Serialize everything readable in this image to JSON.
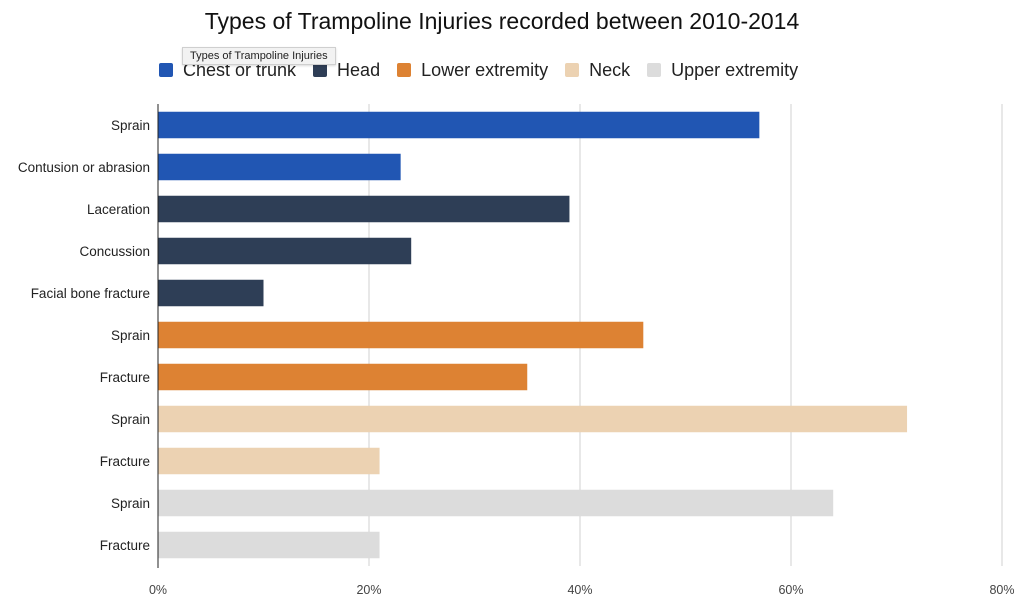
{
  "chart_data": {
    "type": "bar",
    "orientation": "horizontal",
    "title": "Types of Trampoline Injuries recorded between 2010-2014",
    "xlabel": "",
    "ylabel": "",
    "xlim": [
      0,
      80
    ],
    "x_ticks": [
      "0%",
      "20%",
      "40%",
      "60%",
      "80%"
    ],
    "grid": true,
    "legend_position": "top",
    "tooltip": "Types of Trampoline Injuries",
    "legend": [
      {
        "name": "Chest or trunk",
        "color": "#2156b3"
      },
      {
        "name": "Head",
        "color": "#2e3e56"
      },
      {
        "name": "Lower extremity",
        "color": "#dd8233"
      },
      {
        "name": "Neck",
        "color": "#ecd2b2"
      },
      {
        "name": "Upper extremity",
        "color": "#dcdcdc"
      }
    ],
    "categories": [
      "Sprain",
      "Contusion or abrasion",
      "Laceration",
      "Concussion",
      "Facial bone fracture",
      "Sprain",
      "Fracture",
      "Sprain",
      "Fracture",
      "Sprain",
      "Fracture"
    ],
    "values": [
      57,
      23,
      39,
      24,
      10,
      46,
      35,
      71,
      21,
      64,
      21
    ],
    "bar_groups": [
      "Chest or trunk",
      "Chest or trunk",
      "Head",
      "Head",
      "Head",
      "Lower extremity",
      "Lower extremity",
      "Neck",
      "Neck",
      "Upper extremity",
      "Upper extremity"
    ]
  }
}
